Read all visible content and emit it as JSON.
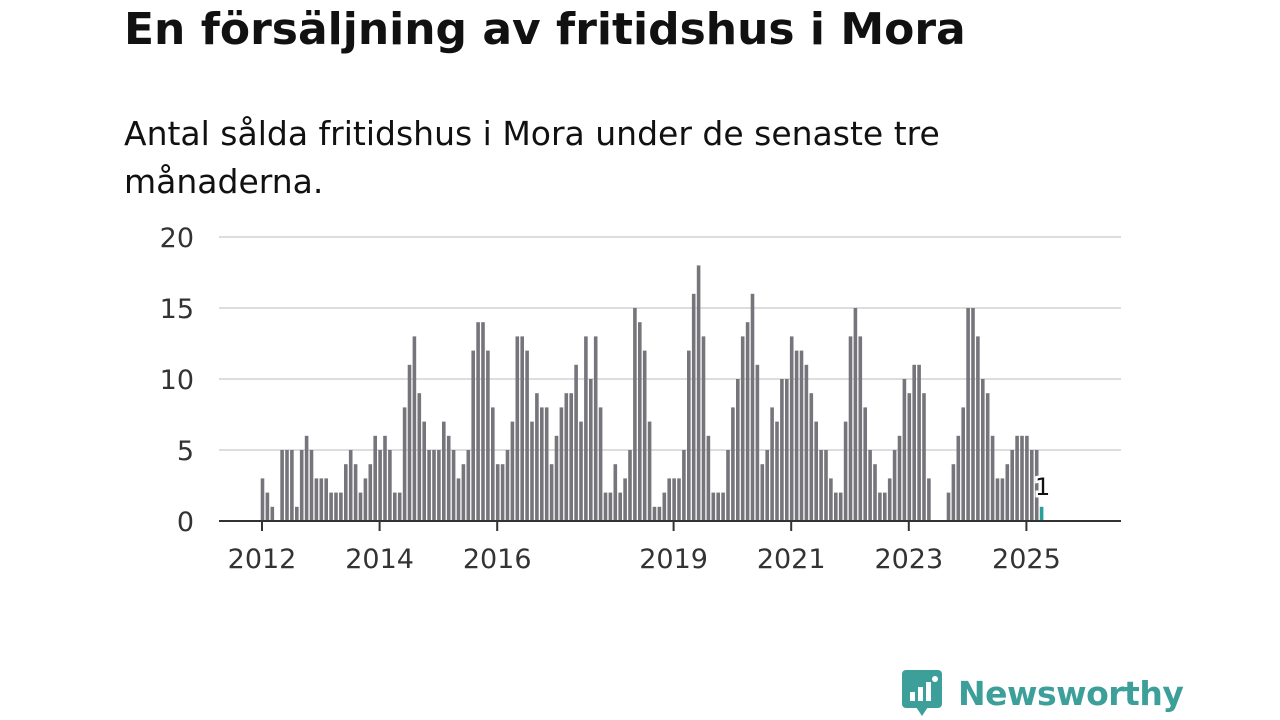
{
  "title": "En försäljning av fritidshus i Mora",
  "subtitle": "Antal sålda fritidshus i Mora under de senaste tre månaderna.",
  "brand": {
    "name": "Newsworthy",
    "color": "#3d9f9a",
    "icon": "newsworthy-logo-icon"
  },
  "chart_data": {
    "type": "bar",
    "title": "En försäljning av fritidshus i Mora",
    "xlabel": "",
    "ylabel": "",
    "ylim": [
      0,
      20
    ],
    "yticks": [
      0,
      5,
      10,
      15,
      20
    ],
    "xticks": [
      "2012",
      "2014",
      "2016",
      "2019",
      "2021",
      "2023",
      "2025"
    ],
    "x_start": "2012-01",
    "frequency": "monthly",
    "bar_color": "#76757b",
    "highlight_color": "#2aa198",
    "highlight_label": "1",
    "values": [
      3,
      2,
      1,
      0,
      5,
      5,
      5,
      1,
      5,
      6,
      5,
      3,
      3,
      3,
      2,
      2,
      2,
      4,
      5,
      4,
      2,
      3,
      4,
      6,
      5,
      6,
      5,
      2,
      2,
      8,
      11,
      13,
      9,
      7,
      5,
      5,
      5,
      7,
      6,
      5,
      3,
      4,
      5,
      12,
      14,
      14,
      12,
      8,
      4,
      4,
      5,
      7,
      13,
      13,
      12,
      7,
      9,
      8,
      8,
      4,
      6,
      8,
      9,
      9,
      11,
      7,
      13,
      10,
      13,
      8,
      2,
      2,
      4,
      2,
      3,
      5,
      15,
      14,
      12,
      7,
      1,
      1,
      2,
      3,
      3,
      3,
      5,
      12,
      16,
      18,
      13,
      6,
      2,
      2,
      2,
      5,
      8,
      10,
      13,
      14,
      16,
      11,
      4,
      5,
      8,
      7,
      10,
      10,
      13,
      12,
      12,
      11,
      9,
      7,
      5,
      5,
      3,
      2,
      2,
      7,
      13,
      15,
      13,
      8,
      5,
      4,
      2,
      2,
      3,
      5,
      6,
      10,
      9,
      11,
      11,
      9,
      3,
      0,
      0,
      0,
      2,
      4,
      6,
      8,
      15,
      15,
      13,
      10,
      9,
      6,
      3,
      3,
      4,
      5,
      6,
      6,
      6,
      5,
      5,
      1
    ]
  }
}
